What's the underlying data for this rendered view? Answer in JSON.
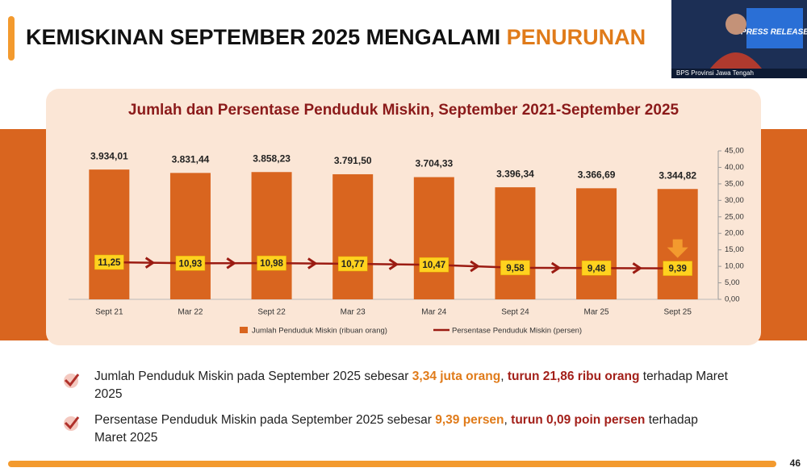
{
  "title": {
    "main": "KEMISKINAN SEPTEMBER 2025 MENGALAMI ",
    "highlight": "PENURUNAN"
  },
  "thumbnail": {
    "badge": "PRESS RELEASE",
    "caption": "BPS Provinsi Jawa Tengah"
  },
  "page_number": "46",
  "bullets": [
    [
      {
        "text": "Jumlah Penduduk Miskin pada September 2025 sebesar ",
        "style": "normal"
      },
      {
        "text": "3,34 juta orang",
        "style": "orange"
      },
      {
        "text": ", ",
        "style": "normal"
      },
      {
        "text": "turun 21,86 ribu orang",
        "style": "red"
      },
      {
        "text": " terhadap Maret 2025",
        "style": "normal"
      }
    ],
    [
      {
        "text": "Persentase Penduduk Miskin pada September 2025 sebesar ",
        "style": "normal"
      },
      {
        "text": "9,39 persen",
        "style": "orange"
      },
      {
        "text": ", ",
        "style": "normal"
      },
      {
        "text": "turun 0,09 poin persen",
        "style": "red"
      },
      {
        "text": " terhadap Maret 2025",
        "style": "normal"
      }
    ]
  ],
  "chart_data": {
    "type": "bar-line",
    "title": "Jumlah dan Persentase Penduduk Miskin, September 2021-September 2025",
    "categories": [
      "Sept 21",
      "Mar 22",
      "Sept 22",
      "Mar 23",
      "Mar 24",
      "Sept 24",
      "Mar 25",
      "Sept 25"
    ],
    "series": [
      {
        "name": "Jumlah Penduduk Miskin (ribuan orang)",
        "color": "#d9651f",
        "kind": "bar",
        "values": [
          3934.01,
          3831.44,
          3858.23,
          3791.5,
          3704.33,
          3396.34,
          3366.69,
          3344.82
        ],
        "value_labels": [
          "3.934,01",
          "3.831,44",
          "3.858,23",
          "3.791,50",
          "3.704,33",
          "3.396,34",
          "3.366,69",
          "3.344,82"
        ]
      },
      {
        "name": "Persentase Penduduk Miskin (persen)",
        "color": "#9b1b12",
        "kind": "line",
        "axis": "y2",
        "values": [
          11.25,
          10.93,
          10.98,
          10.77,
          10.47,
          9.58,
          9.48,
          9.39
        ],
        "value_labels": [
          "11,25",
          "10,93",
          "10,98",
          "10,77",
          "10,47",
          "9,58",
          "9,48",
          "9,39"
        ]
      }
    ],
    "ylim": [
      0,
      4500
    ],
    "y2lim": [
      0,
      45
    ],
    "y2ticks": [
      {
        "value": 0,
        "label": "0,00"
      },
      {
        "value": 5,
        "label": "5,00"
      },
      {
        "value": 10,
        "label": "10,00"
      },
      {
        "value": 15,
        "label": "15,00"
      },
      {
        "value": 20,
        "label": "20,00"
      },
      {
        "value": 25,
        "label": "25,00"
      },
      {
        "value": 30,
        "label": "30,00"
      },
      {
        "value": 35,
        "label": "35,00"
      },
      {
        "value": 40,
        "label": "40,00"
      },
      {
        "value": 45,
        "label": "45,00"
      }
    ]
  }
}
